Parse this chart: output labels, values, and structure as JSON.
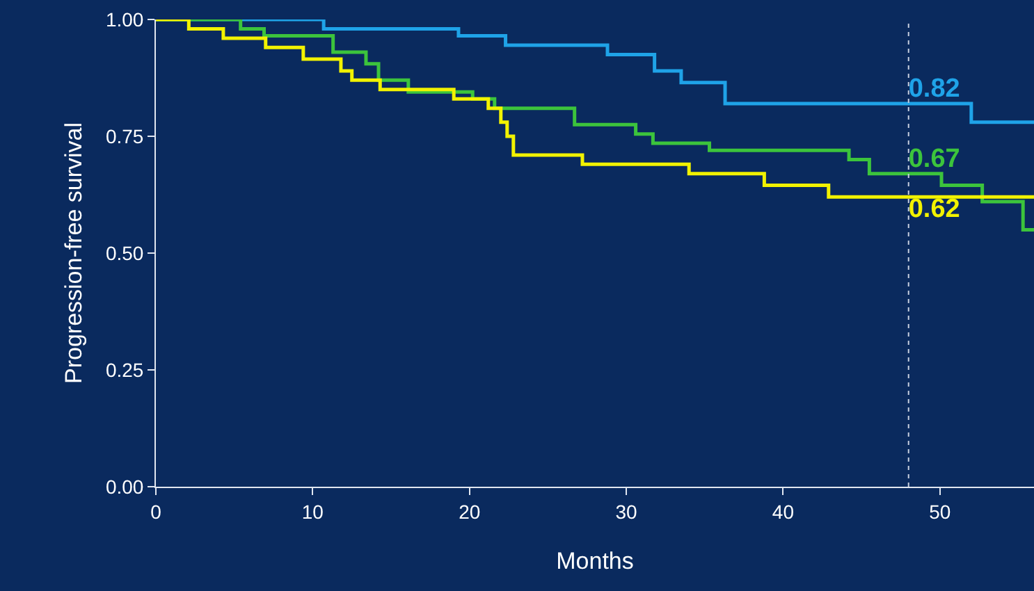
{
  "chart_data": {
    "type": "step",
    "xlabel": "Months",
    "ylabel": "Progression-free survival",
    "xlim": [
      0,
      56
    ],
    "xticks": [
      0,
      10,
      20,
      30,
      40,
      50
    ],
    "ylim": [
      0,
      1
    ],
    "yticks": [
      {
        "value": 0,
        "label": "0.00"
      },
      {
        "value": 0.25,
        "label": "0.25"
      },
      {
        "value": 0.5,
        "label": "0.50"
      },
      {
        "value": 0.75,
        "label": "0.75"
      },
      {
        "value": 1,
        "label": "1.00"
      }
    ],
    "grid": false,
    "marker": "none",
    "line_style": "solid",
    "series": [
      {
        "color": "#1fa3e8",
        "x": [
          0,
          10.7,
          19.3,
          22.3,
          28.8,
          31.8,
          33.5,
          36.3,
          52,
          56
        ],
        "values": [
          1,
          0.98,
          0.965,
          0.945,
          0.925,
          0.89,
          0.865,
          0.82,
          0.78,
          0.78
        ]
      },
      {
        "color": "#3cc43c",
        "x": [
          0,
          5.4,
          6.9,
          11.3,
          13.4,
          14.2,
          16.1,
          20.2,
          21.6,
          26.7,
          30.6,
          31.7,
          35.3,
          44.2,
          45.5,
          50.1,
          52.7,
          55.3,
          56
        ],
        "values": [
          1,
          0.98,
          0.965,
          0.93,
          0.905,
          0.87,
          0.845,
          0.83,
          0.81,
          0.775,
          0.755,
          0.735,
          0.72,
          0.7,
          0.67,
          0.645,
          0.61,
          0.55,
          0.55
        ]
      },
      {
        "color": "#f2f200",
        "x": [
          0,
          2.1,
          4.3,
          7,
          9.4,
          11.8,
          12.5,
          14.3,
          19,
          21.2,
          22,
          22.4,
          22.8,
          27.2,
          34,
          38.8,
          42.9,
          56
        ],
        "values": [
          1,
          0.98,
          0.96,
          0.94,
          0.915,
          0.89,
          0.87,
          0.85,
          0.83,
          0.81,
          0.78,
          0.75,
          0.71,
          0.69,
          0.67,
          0.645,
          0.62,
          0.62
        ]
      }
    ],
    "ref_lines": [
      {
        "axis": "x",
        "value": 48,
        "color": "#c8d0e0",
        "line_style": "dotted"
      }
    ],
    "annotations": [
      {
        "text": "0.82",
        "y": 0.82
      },
      {
        "text": "0.67",
        "y": 0.67
      },
      {
        "text": "0.62",
        "y": 0.62
      }
    ]
  }
}
